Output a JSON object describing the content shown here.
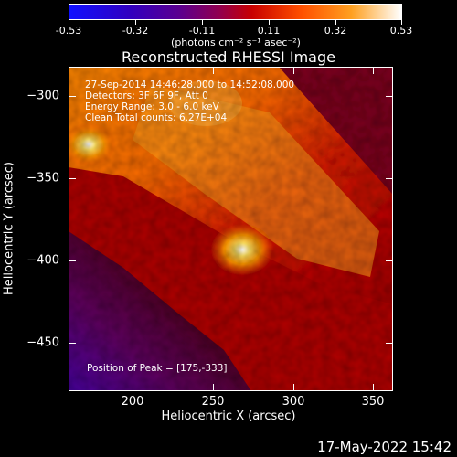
{
  "colorbar": {
    "ticks": [
      "-0.53",
      "-0.32",
      "-0.11",
      "0.11",
      "0.32",
      "0.53"
    ],
    "unit": "(photons cm⁻² s⁻¹ asec⁻²)"
  },
  "title": "Reconstructed RHESSI Image",
  "info": {
    "time": "27-Sep-2014 14:46:28.000 to 14:52:08.000",
    "detectors": "Detectors: 3F 6F 9F, Att 0",
    "energy": "Energy Range: 3.0 - 6.0 keV",
    "method": "Clean     Total counts: 6.27E+04"
  },
  "peak": "Position of Peak = [175,-333]",
  "axes": {
    "xlabel": "Heliocentric X (arcsec)",
    "ylabel": "Heliocentric Y (arcsec)",
    "xticks": [
      "200",
      "250",
      "300",
      "350"
    ],
    "yticks": [
      "−300",
      "−350",
      "−400",
      "−450"
    ]
  },
  "datestamp": "17-May-2022 15:42"
}
